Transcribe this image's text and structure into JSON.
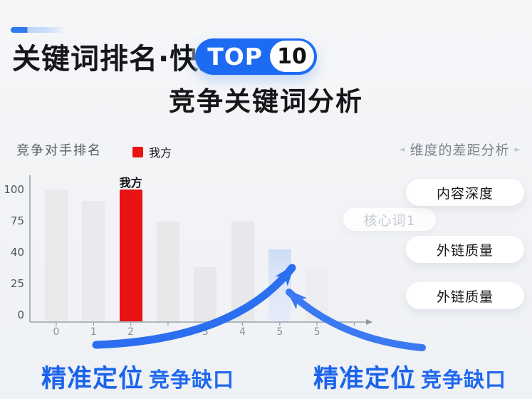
{
  "header": {
    "title": "关键词排名·快速",
    "badge": {
      "word": "TOP",
      "number": "10"
    },
    "subtitle": "竞争关键词分析"
  },
  "chart": {
    "title": "竞争对手排名",
    "legend_label": "我方",
    "bar_annotation": "我方"
  },
  "chart_data": {
    "type": "bar",
    "title": "竞争对手排名",
    "categories": [
      "0",
      "1",
      "2",
      "",
      "3",
      "4",
      "5",
      "5"
    ],
    "values": [
      100,
      91,
      100,
      74,
      33,
      74,
      43,
      32
    ],
    "bar_colors": [
      "#e9eaec",
      "#e9eaec",
      "#e81414",
      "#e6e8ea",
      "#e6e8ea",
      "#e6e8ea",
      "#d9e3f6",
      "#ededf0"
    ],
    "highlight_index": 2,
    "target_index": 6,
    "y_ticks": [
      "100",
      "75",
      "40",
      "25",
      "0"
    ],
    "legend": [
      "我方"
    ],
    "annotation_label": "我方",
    "ylim": [
      0,
      100
    ],
    "grid": false,
    "legend_position": "top"
  },
  "sidebar": {
    "left_arrow": "◄",
    "right_arrow": "►",
    "header": "维度的差距分析",
    "pills": [
      "内容深度",
      "外链质量",
      "外链质量"
    ],
    "faded_tag": "核心词1"
  },
  "captions": [
    {
      "strong": "精准定位",
      "rest": "竞争缺口"
    },
    {
      "strong": "精准定位",
      "rest": "竞争缺口"
    }
  ],
  "colors": {
    "accent_blue": "#2b6ff0",
    "badge_blue": "#1d6bf2",
    "bar_red": "#e81414",
    "bar_highlight": "#d9e3f6",
    "caption_blue": "#1b63ea",
    "axis_gray": "#9aa2ac"
  }
}
